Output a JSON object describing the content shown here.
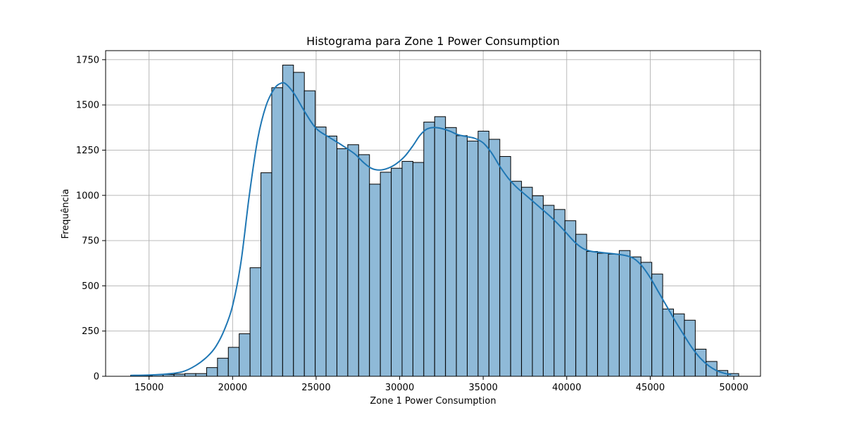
{
  "chart_data": {
    "type": "bar",
    "subtype": "histogram_with_kde",
    "title": "Histograma para Zone 1 Power Consumption",
    "xlabel": "Zone 1 Power Consumption",
    "ylabel": "Frequência",
    "xlim": [
      12400,
      51600
    ],
    "ylim": [
      0,
      1800
    ],
    "xticks": [
      15000,
      20000,
      25000,
      30000,
      35000,
      40000,
      45000,
      50000
    ],
    "yticks": [
      0,
      250,
      500,
      750,
      1000,
      1250,
      1500,
      1750
    ],
    "grid": true,
    "colors": {
      "bar_fill": "#8fbad8",
      "bar_edge": "#000000",
      "kde_line": "#1f77b4",
      "grid": "#b0b0b0"
    },
    "bin_start": 13895,
    "bin_width": 650,
    "values": [
      5,
      3,
      8,
      10,
      12,
      15,
      15,
      48,
      100,
      160,
      235,
      600,
      1125,
      1595,
      1720,
      1680,
      1578,
      1378,
      1328,
      1258,
      1280,
      1225,
      1062,
      1128,
      1150,
      1188,
      1182,
      1405,
      1435,
      1375,
      1330,
      1300,
      1355,
      1310,
      1215,
      1078,
      1045,
      998,
      945,
      922,
      860,
      785,
      690,
      680,
      675,
      695,
      660,
      630,
      565,
      372,
      345,
      310,
      150,
      82,
      32,
      15
    ],
    "kde": {
      "x": [
        13895,
        15000,
        16000,
        17000,
        17800,
        18500,
        19000,
        19500,
        20000,
        20500,
        21000,
        21500,
        22000,
        22500,
        22900,
        23200,
        23700,
        24300,
        25000,
        25800,
        26500,
        27300,
        27800,
        28300,
        28800,
        29300,
        29800,
        30300,
        30800,
        31200,
        31600,
        32000,
        32500,
        33000,
        33500,
        34000,
        34500,
        35000,
        35500,
        36000,
        36500,
        37000,
        37500,
        38000,
        38500,
        39000,
        39500,
        40000,
        40500,
        41000,
        41500,
        42000,
        42500,
        43000,
        43500,
        44000,
        44500,
        45000,
        45500,
        46000,
        46500,
        47000,
        47500,
        48000,
        48500,
        49000,
        49500,
        49845
      ],
      "y": [
        5,
        7,
        12,
        25,
        60,
        110,
        165,
        255,
        390,
        630,
        1000,
        1310,
        1495,
        1590,
        1620,
        1615,
        1560,
        1465,
        1370,
        1320,
        1280,
        1230,
        1185,
        1150,
        1140,
        1150,
        1175,
        1215,
        1275,
        1330,
        1365,
        1375,
        1370,
        1355,
        1335,
        1325,
        1315,
        1290,
        1235,
        1160,
        1095,
        1045,
        1005,
        965,
        925,
        885,
        840,
        790,
        740,
        705,
        690,
        685,
        680,
        675,
        668,
        652,
        610,
        545,
        465,
        385,
        305,
        230,
        158,
        100,
        58,
        30,
        15,
        10
      ]
    }
  }
}
